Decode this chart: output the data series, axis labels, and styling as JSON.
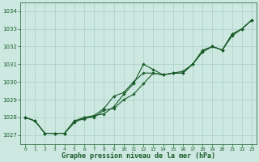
{
  "title": "Graphe pression niveau de la mer (hPa)",
  "background_color": "#cce8e0",
  "grid_color": "#aacfc8",
  "line_color": "#1a5c2a",
  "x_labels": [
    "0",
    "1",
    "2",
    "3",
    "4",
    "5",
    "6",
    "7",
    "8",
    "9",
    "10",
    "11",
    "12",
    "13",
    "14",
    "15",
    "16",
    "17",
    "18",
    "19",
    "20",
    "21",
    "22",
    "23"
  ],
  "ylim": [
    1026.5,
    1034.5
  ],
  "yticks": [
    1027,
    1028,
    1029,
    1030,
    1031,
    1032,
    1033,
    1034
  ],
  "series1": [
    1028.0,
    1027.8,
    1027.1,
    1027.1,
    1027.1,
    1027.8,
    1027.9,
    1028.1,
    1028.2,
    1028.6,
    1029.3,
    1029.9,
    1031.0,
    1030.7,
    1030.4,
    1030.5,
    1030.5,
    1031.0,
    1031.7,
    1032.0,
    1031.8,
    1032.7,
    1033.0,
    1033.5
  ],
  "series2": [
    1028.0,
    1027.8,
    1027.1,
    1027.1,
    1027.1,
    1027.8,
    1028.0,
    1028.1,
    1028.5,
    1029.2,
    1029.4,
    1030.0,
    1030.5,
    1030.5,
    1030.4,
    1030.5,
    1030.6,
    1031.0,
    1031.8,
    1032.0,
    1031.8,
    1032.6,
    1033.0,
    1033.5
  ],
  "series3": [
    1028.0,
    1027.8,
    1027.1,
    1027.1,
    1027.1,
    1027.7,
    1028.0,
    1028.0,
    1028.4,
    1028.5,
    1029.0,
    1029.3,
    1029.9,
    1030.5,
    1030.4,
    1030.5,
    1030.5,
    1031.0,
    1031.7,
    1032.0,
    1031.8,
    1032.7,
    1033.0,
    1033.5
  ]
}
